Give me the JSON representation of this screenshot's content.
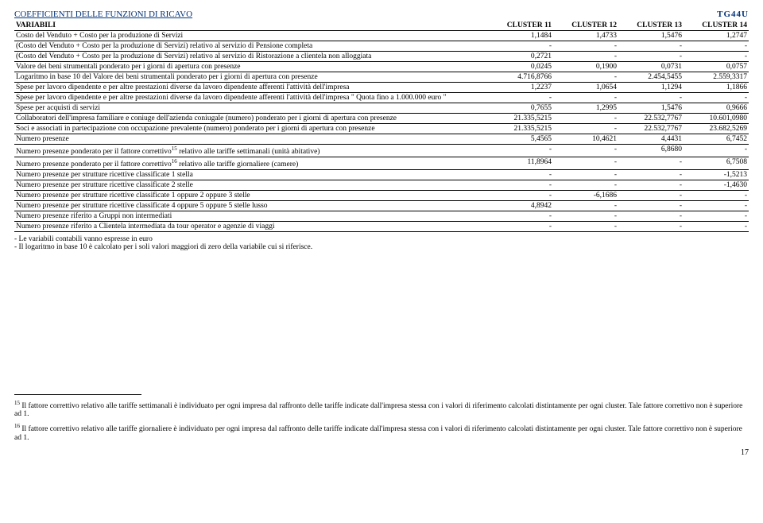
{
  "tgcode": "TG44U",
  "title": "COEFFICIENTI DELLE FUNZIONI DI RICAVO",
  "columns": [
    "VARIABILI",
    "CLUSTER 11",
    "CLUSTER 12",
    "CLUSTER 13",
    "CLUSTER 14"
  ],
  "rows": [
    {
      "label": "Costo del Venduto + Costo per la produzione di Servizi",
      "v": [
        "1,1484",
        "1,4733",
        "1,5476",
        "1,2747"
      ]
    },
    {
      "label": "(Costo del Venduto + Costo per la produzione di Servizi) relativo al servizio di Pensione completa",
      "v": [
        "-",
        "-",
        "-",
        "-"
      ]
    },
    {
      "label": "(Costo del Venduto + Costo per la produzione di Servizi) relativo al servizio di Ristorazione a clientela non alloggiata",
      "v": [
        "0,2721",
        "-",
        "-",
        "-"
      ]
    },
    {
      "label": "Valore dei beni strumentali ponderato per i giorni di apertura con presenze",
      "v": [
        "0,0245",
        "0,1900",
        "0,0731",
        "0,0757"
      ]
    },
    {
      "label": "Logaritmo in base 10 del Valore dei beni strumentali ponderato per i giorni di apertura con presenze",
      "v": [
        "4.716,8766",
        "-",
        "2.454,5455",
        "2.559,3317"
      ]
    },
    {
      "label": "Spese per lavoro dipendente e per altre prestazioni diverse da lavoro dipendente afferenti l'attività dell'impresa",
      "v": [
        "1,2237",
        "1,0654",
        "1,1294",
        "1,1866"
      ]
    },
    {
      "label": "Spese per lavoro dipendente e per altre prestazioni diverse da lavoro dipendente afferenti l'attività dell'impresa \" Quota fino a 1.000.000 euro \"",
      "v": [
        "-",
        "-",
        "-",
        "-"
      ]
    },
    {
      "label": "Spese per acquisti di servizi",
      "v": [
        "0,7655",
        "1,2995",
        "1,5476",
        "0,9666"
      ]
    },
    {
      "label": "Collaboratori dell'impresa familiare e coniuge dell'azienda coniugale (numero) ponderato per i giorni di apertura con presenze",
      "v": [
        "21.335,5215",
        "-",
        "22.532,7767",
        "10.601,0980"
      ]
    },
    {
      "label": "Soci e associati in partecipazione con occupazione prevalente (numero) ponderato per i giorni di apertura con presenze",
      "v": [
        "21.335,5215",
        "-",
        "22.532,7767",
        "23.682,5269"
      ]
    },
    {
      "label": "Numero presenze",
      "v": [
        "5,4565",
        "10,4621",
        "4,4431",
        "6,7452"
      ]
    },
    {
      "label": "Numero presenze ponderato per il fattore correttivo15 relativo alle tariffe settimanali (unità abitative)",
      "sup": "15",
      "v": [
        "-",
        "-",
        "6,8680",
        "-"
      ]
    },
    {
      "label": "Numero presenze ponderato per il fattore correttivo16 relativo alle tariffe giornaliere (camere)",
      "sup": "16",
      "v": [
        "11,8964",
        "-",
        "-",
        "6,7508"
      ]
    },
    {
      "label": "Numero presenze per strutture ricettive classificate 1 stella",
      "v": [
        "-",
        "-",
        "-",
        "-1,5213"
      ]
    },
    {
      "label": "Numero presenze per strutture ricettive classificate 2 stelle",
      "v": [
        "-",
        "-",
        "-",
        "-1,4630"
      ]
    },
    {
      "label": "Numero presenze per strutture ricettive classificate 1 oppure 2 oppure 3 stelle",
      "v": [
        "-",
        "-6,1686",
        "-",
        "-"
      ]
    },
    {
      "label": "Numero presenze per strutture ricettive classificate 4 oppure 5 oppure 5 stelle lusso",
      "v": [
        "4,8942",
        "-",
        "-",
        "-"
      ]
    },
    {
      "label": "Numero presenze riferito a Gruppi non intermediati",
      "v": [
        "-",
        "-",
        "-",
        "-"
      ]
    },
    {
      "label": "Numero presenze riferito a Clientela intermediata da tour operator e agenzie di viaggi",
      "v": [
        "-",
        "-",
        "-",
        "-"
      ]
    }
  ],
  "note1": "- Le variabili contabili vanno espresse in euro",
  "note2": "- Il logaritmo in base 10 è calcolato per i soli valori maggiori di zero della variabile cui si riferisce.",
  "fn15num": "15",
  "fn15": "Il fattore correttivo relativo alle tariffe settimanali è individuato per ogni impresa dal raffronto delle tariffe indicate dall'impresa stessa con i valori di riferimento calcolati distintamente per ogni cluster. Tale fattore correttivo non è superiore ad 1.",
  "fn16num": "16",
  "fn16": "Il fattore correttivo relativo alle tariffe giornaliere è individuato per ogni impresa dal raffronto delle tariffe indicate dall'impresa stessa con i valori di riferimento calcolati distintamente per ogni cluster. Tale fattore correttivo non è superiore ad 1.",
  "pagenum": "17"
}
